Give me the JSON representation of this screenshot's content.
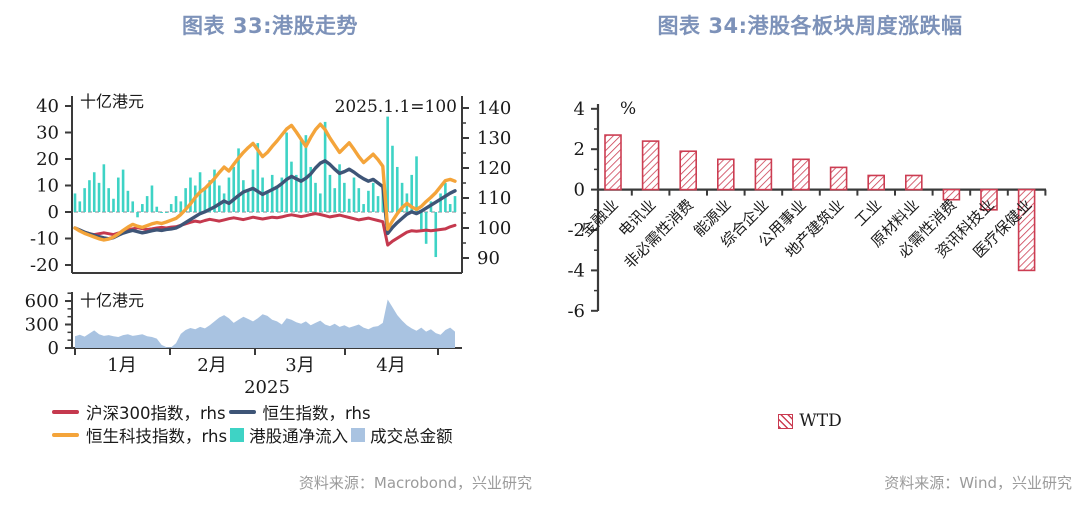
{
  "colors": {
    "title": "#7d92b9",
    "source_text": "#9b9b9b",
    "axis": "#3a3a3a",
    "csi300_red": "#c5394e",
    "hsi_blue": "#3e5577",
    "hstech_orange": "#f4a43a",
    "flow_cyan": "#3ed3c5",
    "turnover_steelblue": "#a9c3e1",
    "wtd_bar_red": "#cc3d52"
  },
  "chart_data": [
    {
      "id": "hk-stock-trend",
      "type": "combo",
      "title": "图表 33:港股走势",
      "source": "资料来源：Macrobond，兴业研究",
      "x_axis": {
        "month_labels": [
          "1月",
          "2月",
          "3月",
          "4月"
        ],
        "year_label": "2025",
        "days_per_month": [
          22,
          20,
          21,
          17
        ]
      },
      "panels": [
        {
          "unit_label": "十亿港元",
          "annotation": "2025.1.1=100",
          "left_axis": {
            "ticks": [
              40,
              30,
              20,
              10,
              0,
              -10,
              -20
            ],
            "range": [
              -20,
              40
            ]
          },
          "right_axis": {
            "ticks": [
              140,
              130,
              120,
              110,
              100,
              90
            ],
            "range": [
              90,
              140
            ]
          },
          "bar_series": {
            "name": "港股通净流入",
            "axis": "left",
            "color": "#3ed3c5",
            "values": [
              7,
              4,
              9,
              12,
              15,
              11,
              18,
              9,
              5,
              13,
              16,
              8,
              4,
              -2,
              3,
              6,
              10,
              2,
              0,
              0,
              3,
              6,
              4,
              9,
              13,
              10,
              15,
              9,
              12,
              16,
              10,
              7,
              13,
              17,
              24,
              12,
              8,
              16,
              26,
              13,
              8,
              14,
              10,
              13,
              30,
              19,
              14,
              27,
              29,
              17,
              11,
              7,
              34,
              14,
              9,
              18,
              11,
              5,
              13,
              9,
              3,
              8,
              11,
              6,
              9,
              36,
              25,
              17,
              11,
              7,
              14,
              21,
              -7,
              -12,
              4,
              -17,
              7,
              11,
              3,
              6
            ]
          },
          "line_series": [
            {
              "name": "沪深300指数，rhs",
              "axis": "right",
              "color": "#c5394e",
              "values": [
                100.0,
                99.2,
                98.6,
                98.1,
                97.8,
                98.1,
                98.4,
                98.1,
                97.8,
                98.3,
                98.9,
                99.4,
                99.7,
                100.1,
                99.8,
                99.5,
                99.7,
                100.0,
                100.2,
                100.0,
                100.3,
                100.4,
                100.9,
                101.4,
                101.9,
                102.3,
                102.0,
                102.5,
                102.9,
                102.6,
                102.3,
                102.7,
                103.1,
                103.4,
                103.1,
                102.8,
                103.2,
                103.6,
                103.3,
                103.0,
                103.3,
                103.6,
                103.4,
                103.7,
                104.1,
                104.4,
                104.1,
                103.8,
                104.1,
                104.5,
                104.8,
                104.5,
                104.1,
                103.7,
                104.0,
                104.3,
                103.9,
                103.5,
                103.1,
                102.7,
                103.0,
                103.3,
                102.9,
                102.5,
                102.1,
                94.3,
                95.6,
                96.6,
                97.6,
                98.6,
                99.1,
                98.9,
                99.1,
                99.3,
                99.1,
                99.3,
                99.5,
                99.7,
                100.4,
                100.9
              ]
            },
            {
              "name": "恒生指数，rhs",
              "axis": "right",
              "color": "#3e5577",
              "values": [
                100.0,
                99.3,
                98.6,
                98.1,
                97.6,
                97.1,
                96.7,
                96.4,
                96.8,
                97.6,
                98.3,
                98.8,
                99.2,
                98.8,
                98.4,
                98.7,
                99.1,
                99.4,
                99.2,
                99.5,
                99.7,
                100.0,
                100.8,
                101.8,
                102.8,
                103.8,
                104.8,
                105.4,
                106.2,
                107.0,
                108.0,
                109.0,
                108.2,
                109.5,
                110.8,
                112.0,
                112.6,
                113.2,
                112.2,
                111.2,
                112.0,
                112.8,
                113.6,
                114.8,
                116.2,
                117.2,
                116.4,
                115.6,
                116.6,
                118.0,
                120.0,
                121.6,
                122.4,
                121.2,
                119.6,
                118.2,
                118.8,
                119.6,
                118.6,
                117.4,
                116.4,
                115.6,
                116.2,
                115.0,
                113.8,
                98.2,
                100.2,
                101.8,
                103.2,
                104.6,
                105.4,
                104.8,
                105.6,
                106.6,
                107.6,
                108.6,
                109.6,
                110.6,
                111.6,
                112.4
              ]
            },
            {
              "name": "恒生科技指数，rhs",
              "axis": "right",
              "color": "#f4a43a",
              "values": [
                100.0,
                99.0,
                98.2,
                97.6,
                97.0,
                96.4,
                96.0,
                96.3,
                97.0,
                98.0,
                99.2,
                100.3,
                101.2,
                100.6,
                100.2,
                100.8,
                101.4,
                101.8,
                101.5,
                102.0,
                102.6,
                103.2,
                104.5,
                106.2,
                108.0,
                110.2,
                112.0,
                113.2,
                114.8,
                116.5,
                118.5,
                120.3,
                119.0,
                121.2,
                123.3,
                125.2,
                126.8,
                128.2,
                126.0,
                123.8,
                125.2,
                127.2,
                129.0,
                131.0,
                133.0,
                134.2,
                132.0,
                129.6,
                127.2,
                130.2,
                132.8,
                134.6,
                132.8,
                130.0,
                127.6,
                125.2,
                126.8,
                128.4,
                126.2,
                123.8,
                121.8,
                123.2,
                124.6,
                122.8,
                120.6,
                99.6,
                102.4,
                104.8,
                106.8,
                108.2,
                107.0,
                106.2,
                107.2,
                108.8,
                110.2,
                111.8,
                113.8,
                115.8,
                116.2,
                115.6
              ]
            }
          ]
        },
        {
          "unit_label": "十亿港元",
          "left_axis": {
            "ticks": [
              600,
              300,
              0
            ],
            "range": [
              0,
              700
            ]
          },
          "area_series": {
            "name": "成交总金额",
            "axis": "left",
            "color": "#a9c3e1",
            "values": [
              150,
              170,
              145,
              185,
              225,
              175,
              155,
              165,
              150,
              140,
              165,
              175,
              155,
              165,
              175,
              150,
              140,
              120,
              40,
              12,
              10,
              60,
              180,
              230,
              255,
              240,
              270,
              250,
              290,
              340,
              390,
              420,
              380,
              320,
              360,
              400,
              370,
              340,
              380,
              430,
              410,
              360,
              340,
              300,
              380,
              360,
              330,
              310,
              340,
              290,
              320,
              350,
              300,
              280,
              310,
              270,
              290,
              260,
              280,
              300,
              260,
              240,
              270,
              280,
              320,
              620,
              520,
              420,
              350,
              290,
              250,
              220,
              260,
              210,
              240,
              190,
              170,
              230,
              260,
              210
            ]
          }
        }
      ]
    },
    {
      "id": "hk-sector-wtd",
      "type": "bar",
      "title": "图表 34:港股各板块周度涨跌幅",
      "source": "资料来源：Wind，兴业研究",
      "ylabel": "%",
      "ylim": [
        -6,
        4
      ],
      "yticks": [
        4,
        2,
        0,
        -2,
        -4,
        -6
      ],
      "legend": "WTD",
      "bar_color": "#cc3d52",
      "categories": [
        "金融业",
        "电讯业",
        "非必需性消费",
        "能源业",
        "综合企业",
        "公用事业",
        "地产建筑业",
        "工业",
        "原材料业",
        "必需性消费",
        "资讯科技业",
        "医疗保健业"
      ],
      "values": [
        2.7,
        2.4,
        1.9,
        1.5,
        1.5,
        1.5,
        1.1,
        0.7,
        0.7,
        -0.5,
        -1.0,
        -4.0
      ]
    }
  ]
}
